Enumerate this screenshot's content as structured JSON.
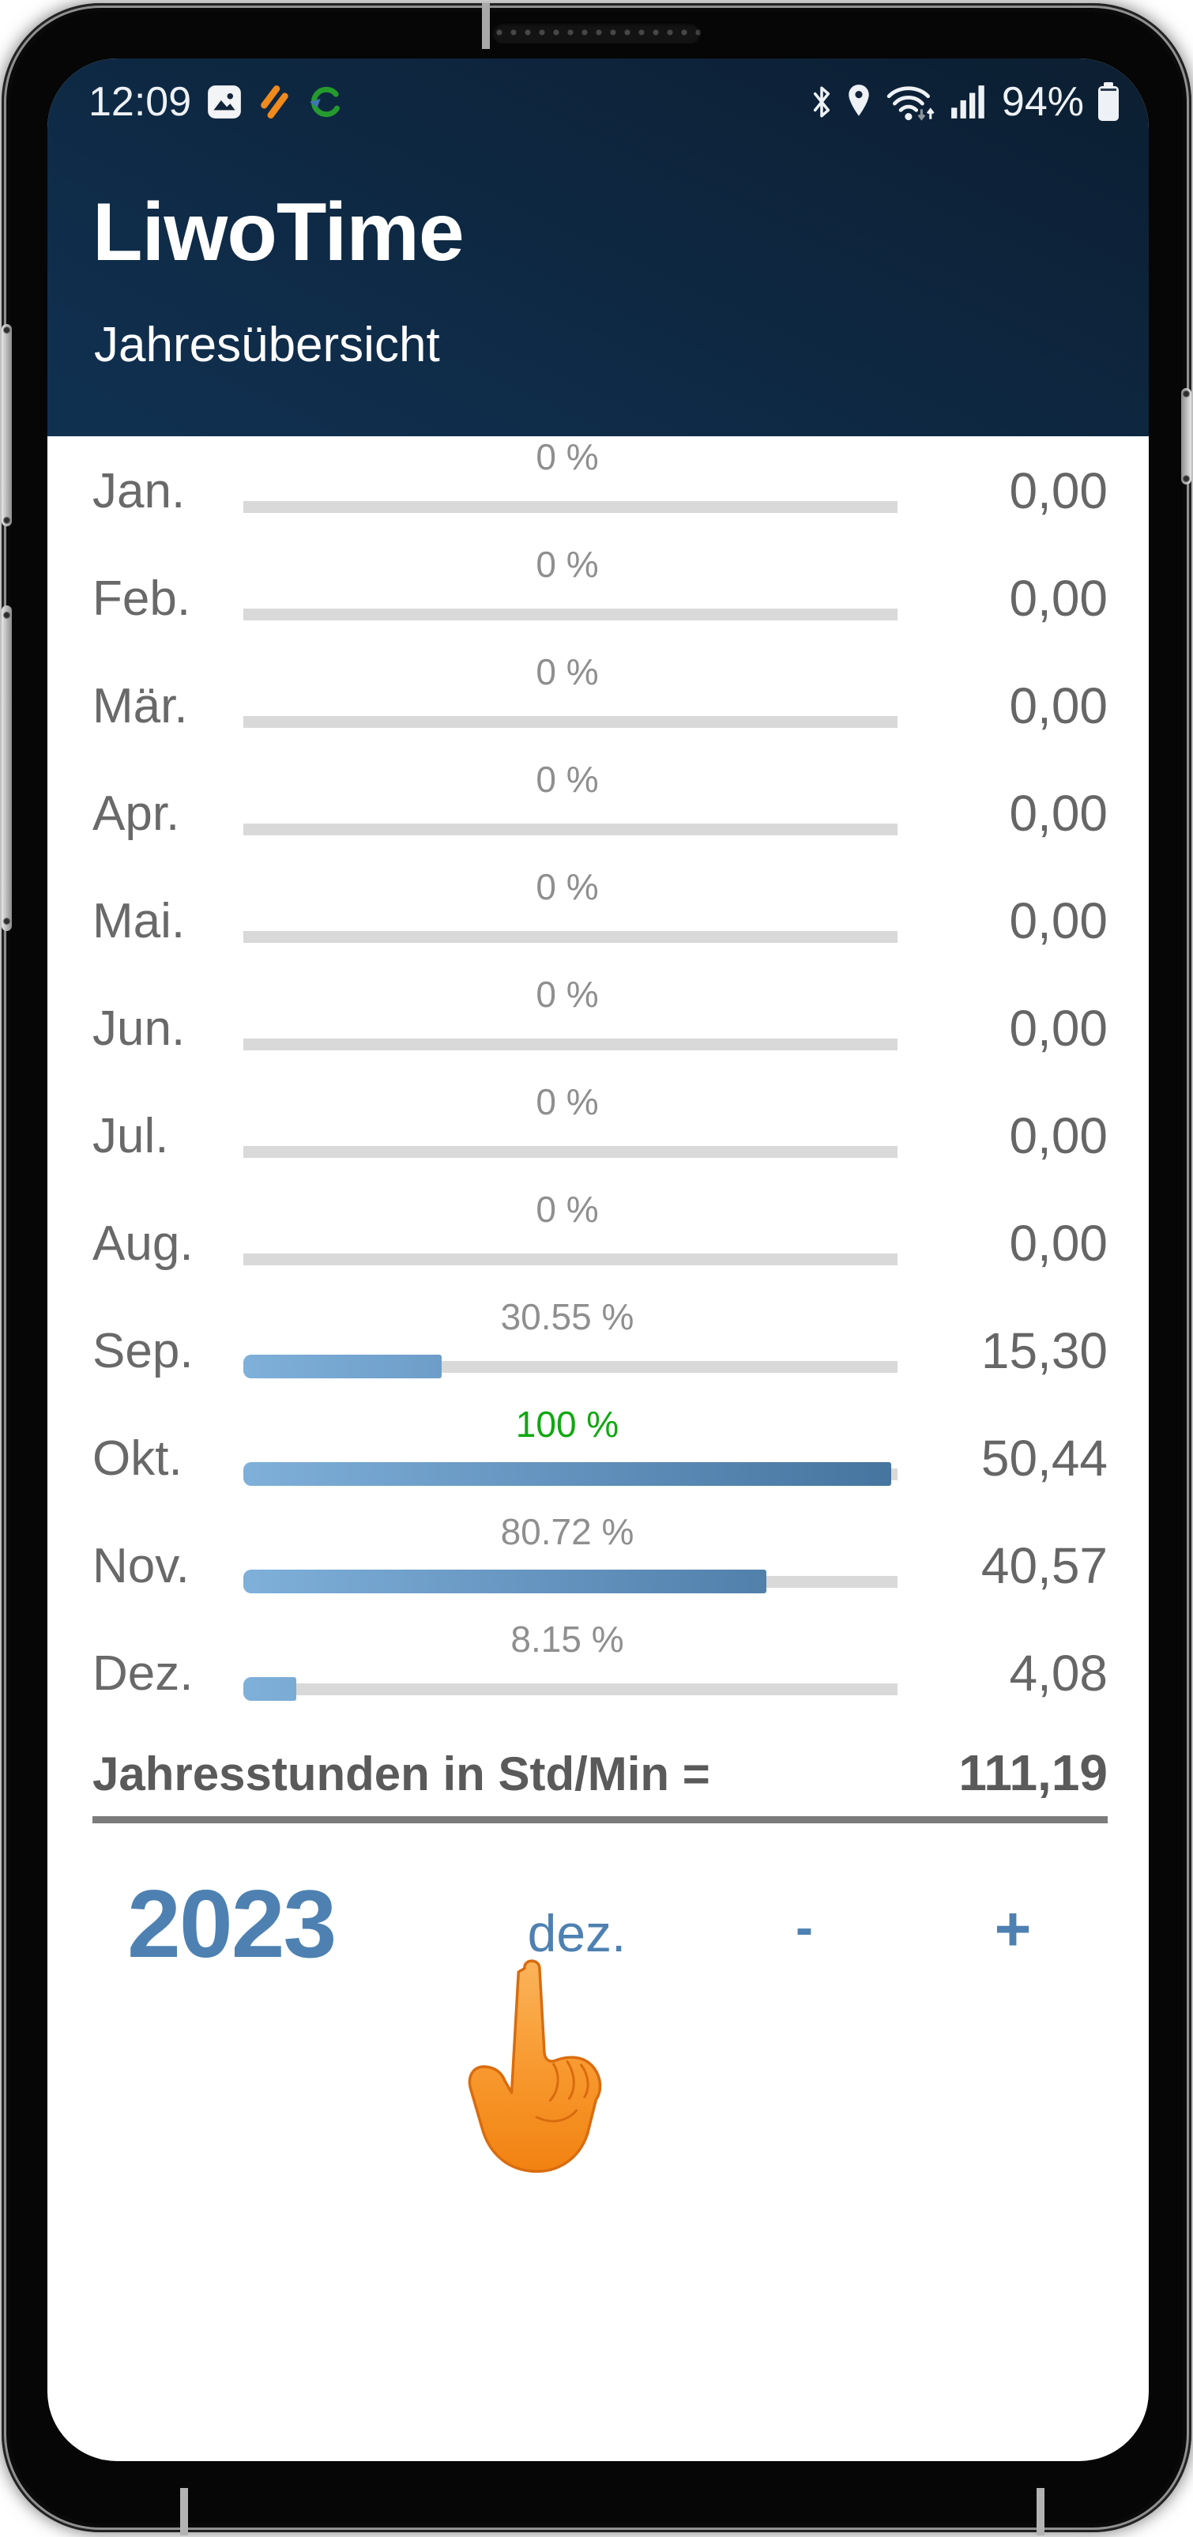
{
  "status_bar": {
    "time": "12:09",
    "battery": "94%"
  },
  "header": {
    "app_title": "LiwoTime",
    "subtitle": "Jahresübersicht"
  },
  "months": [
    {
      "label": "Jan.",
      "percent_label": "0 %",
      "percent": 0,
      "value": "0,00",
      "full": false
    },
    {
      "label": "Feb.",
      "percent_label": "0 %",
      "percent": 0,
      "value": "0,00",
      "full": false
    },
    {
      "label": "Mär.",
      "percent_label": "0 %",
      "percent": 0,
      "value": "0,00",
      "full": false
    },
    {
      "label": "Apr.",
      "percent_label": "0 %",
      "percent": 0,
      "value": "0,00",
      "full": false
    },
    {
      "label": "Mai.",
      "percent_label": "0 %",
      "percent": 0,
      "value": "0,00",
      "full": false
    },
    {
      "label": "Jun.",
      "percent_label": "0 %",
      "percent": 0,
      "value": "0,00",
      "full": false
    },
    {
      "label": "Jul.",
      "percent_label": "0 %",
      "percent": 0,
      "value": "0,00",
      "full": false
    },
    {
      "label": "Aug.",
      "percent_label": "0 %",
      "percent": 0,
      "value": "0,00",
      "full": false
    },
    {
      "label": "Sep.",
      "percent_label": "30.55 %",
      "percent": 30.55,
      "value": "15,30",
      "full": false
    },
    {
      "label": "Okt.",
      "percent_label": "100 %",
      "percent": 100,
      "value": "50,44",
      "full": true
    },
    {
      "label": "Nov.",
      "percent_label": "80.72 %",
      "percent": 80.72,
      "value": "40,57",
      "full": false
    },
    {
      "label": "Dez.",
      "percent_label": "8.15 %",
      "percent": 8.15,
      "value": "4,08",
      "full": false
    }
  ],
  "summary": {
    "label": "Jahresstunden in Std/Min =",
    "value": "111,19"
  },
  "controls": {
    "year": "2023",
    "month": "dez.",
    "minus": "-",
    "plus": "+"
  },
  "colors": {
    "accent_blue": "#4e81b1",
    "bar_light": "#7fb0da",
    "bar_dark": "#45749f",
    "green": "#10a810",
    "track_gray": "#d9d9d9",
    "label_gray": "#696969",
    "percent_gray": "#8f8f8f",
    "value_gray": "#666666",
    "summary_gray": "#5a5a5a",
    "rule_gray": "#7b7b7b",
    "header_from": "#0c1f33",
    "header_to": "#103050",
    "status_fg": "#eef1f5",
    "hand_light": "#fbb45c",
    "hand_dark": "#f28211"
  }
}
